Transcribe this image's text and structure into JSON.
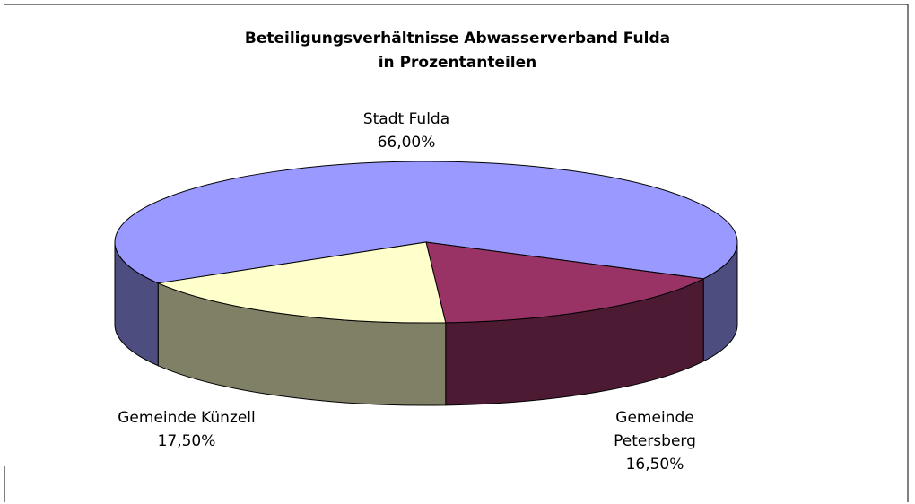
{
  "chart_data": {
    "type": "pie3d",
    "title_lines": [
      "Beteiligungsverhältnisse Abwasserverband Fulda",
      "in Prozentanteilen"
    ],
    "categories": [
      "Stadt Fulda",
      "Gemeinde Petersberg",
      "Gemeinde Künzell"
    ],
    "values": [
      66,
      16.5,
      17.5
    ],
    "value_labels": [
      "66,00%",
      "16,50%",
      "17,50%"
    ],
    "colors": [
      "#9999ff",
      "#993366",
      "#ffffcc"
    ]
  }
}
